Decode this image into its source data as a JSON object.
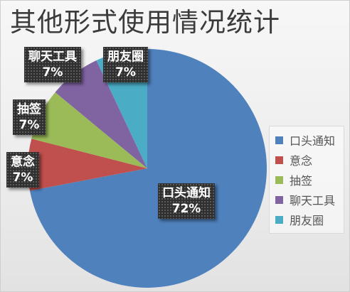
{
  "chart_data": {
    "type": "pie",
    "title": "其他形式使用情况统计",
    "categories": [
      "口头通知",
      "意念",
      "抽签",
      "聊天工具",
      "朋友圈"
    ],
    "values": [
      72,
      7,
      7,
      7,
      7
    ],
    "value_labels": [
      "72%",
      "7%",
      "7%",
      "7%",
      "7%"
    ],
    "colors": [
      "#4f81bd",
      "#c0504d",
      "#9bbb59",
      "#8064a2",
      "#4bacc6"
    ],
    "legend_position": "right",
    "data_labels": "category name and percentage"
  }
}
